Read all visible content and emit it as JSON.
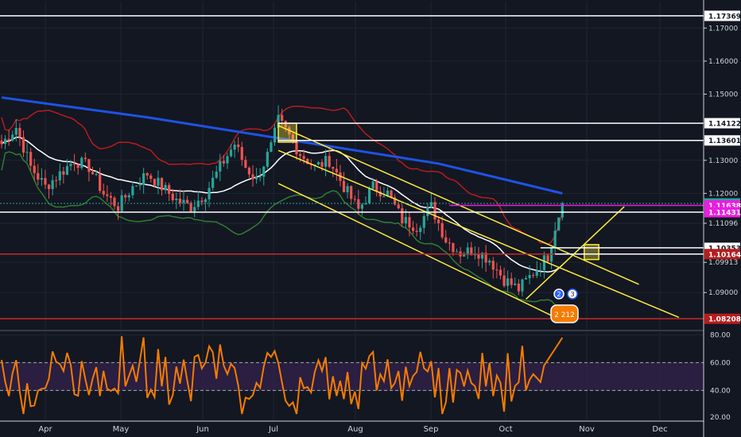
{
  "colors": {
    "background": "#131722",
    "grid": "#1f2433",
    "axis_text": "#d1d4dc",
    "bull": "#26a69a",
    "bear": "#ef5350",
    "ma200": "#1e53e5",
    "bb_upper": "#b71c1c",
    "bb_mid": "#ffffff",
    "bb_lower": "#2e7d32",
    "channel": "#ffeb3b",
    "rsi": "#f57c00",
    "rsi_band": "#3a2356",
    "magenta": "#e91ee0",
    "level_red": "#c62828"
  },
  "price_axis": {
    "ticks": [
      "1.17000",
      "1.16000",
      "1.15000",
      "1.13000",
      "1.12000",
      "1.11096",
      "1.09913",
      "1.09000"
    ],
    "tick_values": [
      1.17,
      1.16,
      1.15,
      1.13,
      1.12,
      1.11096,
      1.09913,
      1.09
    ]
  },
  "price_labels": [
    {
      "text": "1.17369",
      "value": 1.17369,
      "bg": "#ffffff",
      "fg": "#131722"
    },
    {
      "text": "1.14122",
      "value": 1.14122,
      "bg": "#ffffff",
      "fg": "#131722"
    },
    {
      "text": "1.13601",
      "value": 1.13601,
      "bg": "#ffffff",
      "fg": "#131722"
    },
    {
      "text": "1.11696",
      "value": 1.11696,
      "bg": "#26a69a",
      "fg": "#ffffff"
    },
    {
      "text": "1.11638",
      "value": 1.11638,
      "bg": "#e91ee0",
      "fg": "#ffffff"
    },
    {
      "text": "1.11431",
      "value": 1.11431,
      "bg": "#e91ee0",
      "fg": "#ffffff"
    },
    {
      "text": "1.10353",
      "value": 1.10353,
      "bg": "#ffffff",
      "fg": "#131722"
    },
    {
      "text": "1.10164",
      "value": 1.10164,
      "bg": "#b71c1c",
      "fg": "#ffffff"
    },
    {
      "text": "1.08208",
      "value": 1.08208,
      "bg": "#b71c1c",
      "fg": "#ffffff"
    }
  ],
  "rsi_axis": {
    "ticks": [
      "80.00",
      "60.00",
      "40.00",
      "20.00"
    ],
    "tick_values": [
      80,
      60,
      40,
      20
    ]
  },
  "time_axis": {
    "labels": [
      "Apr",
      "May",
      "Jun",
      "Jul",
      "Aug",
      "Sep",
      "Oct",
      "Nov",
      "Dec"
    ]
  },
  "chart_data": {
    "type": "candlestick",
    "symbol_pair_hint": "",
    "start_date": "2019-03-18",
    "end_date": "2019-10-18",
    "price_range": [
      1.079,
      1.178
    ],
    "rsi_range": [
      19,
      82
    ],
    "candle_count": 155,
    "anchor_closes": [
      [
        0,
        1.135
      ],
      [
        4,
        1.14
      ],
      [
        8,
        1.128
      ],
      [
        12,
        1.122
      ],
      [
        16,
        1.126
      ],
      [
        20,
        1.13
      ],
      [
        24,
        1.128
      ],
      [
        28,
        1.12
      ],
      [
        32,
        1.116
      ],
      [
        36,
        1.122
      ],
      [
        40,
        1.126
      ],
      [
        44,
        1.122
      ],
      [
        48,
        1.118
      ],
      [
        52,
        1.116
      ],
      [
        56,
        1.12
      ],
      [
        60,
        1.128
      ],
      [
        64,
        1.135
      ],
      [
        67,
        1.128
      ],
      [
        70,
        1.124
      ],
      [
        74,
        1.134
      ],
      [
        76,
        1.142
      ],
      [
        78,
        1.139
      ],
      [
        82,
        1.132
      ],
      [
        86,
        1.128
      ],
      [
        90,
        1.13
      ],
      [
        94,
        1.122
      ],
      [
        98,
        1.115
      ],
      [
        102,
        1.122
      ],
      [
        106,
        1.12
      ],
      [
        110,
        1.112
      ],
      [
        114,
        1.11
      ],
      [
        118,
        1.116
      ],
      [
        122,
        1.106
      ],
      [
        126,
        1.102
      ],
      [
        130,
        1.103
      ],
      [
        134,
        1.1
      ],
      [
        138,
        1.094
      ],
      [
        142,
        1.091
      ],
      [
        146,
        1.096
      ],
      [
        150,
        1.101
      ],
      [
        152,
        1.11
      ],
      [
        154,
        1.117
      ]
    ],
    "series": [
      {
        "name": "",
        "type": "ma200",
        "points": [
          [
            0,
            1.149
          ],
          [
            40,
            1.143
          ],
          [
            80,
            1.136
          ],
          [
            120,
            1.129
          ],
          [
            154,
            1.12
          ]
        ]
      }
    ],
    "levels": [
      {
        "value": 1.17369,
        "color": "#ffffff"
      },
      {
        "value": 1.14122,
        "color": "#ffffff",
        "from": 76
      },
      {
        "value": 1.13601,
        "color": "#ffffff",
        "from": 76
      },
      {
        "value": 1.11696,
        "color": "#26a69a",
        "style": "dotted"
      },
      {
        "value": 1.11638,
        "color": "#e91ee0",
        "from": 123
      },
      {
        "value": 1.11431,
        "color": "#ffffff"
      },
      {
        "value": 1.10353,
        "color": "#ffffff",
        "from": 148
      },
      {
        "value": 1.10164,
        "color": "#c62828"
      },
      {
        "value": 1.10164,
        "color": "#ffffff",
        "from": 152
      },
      {
        "value": 1.08208,
        "color": "#c62828"
      }
    ],
    "channel": {
      "upper": [
        [
          76,
          1.1405
        ],
        [
          175,
          1.0925
        ]
      ],
      "lower": [
        [
          76,
          1.123
        ],
        [
          153,
          1.082
        ]
      ],
      "mid": [
        [
          76,
          1.133
        ],
        [
          186,
          1.0825
        ]
      ]
    },
    "rising_line": [
      [
        144,
        1.088
      ],
      [
        171,
        1.116
      ]
    ],
    "boxes": [
      {
        "from": 76,
        "to": 81,
        "low": 1.1355,
        "high": 1.1412
      },
      {
        "from": 160,
        "to": 164,
        "low": 1.1,
        "high": 1.1045
      }
    ],
    "rsi_levels": [
      60,
      40
    ],
    "rsi_latest": 78,
    "watermark_badges": [
      "2",
      "3",
      "2 212"
    ]
  }
}
